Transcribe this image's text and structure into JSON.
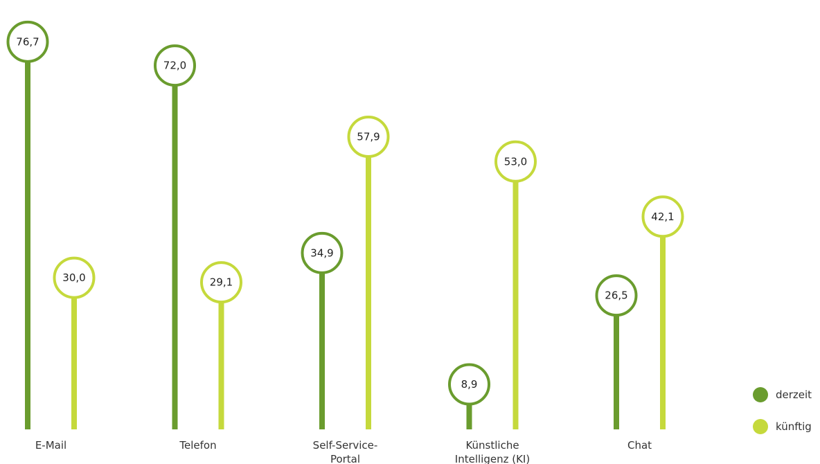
{
  "chart_data": {
    "type": "lollipop",
    "categories": [
      [
        "E-Mail"
      ],
      [
        "Telefon"
      ],
      [
        "Self-Service-",
        "Portal"
      ],
      [
        "Künstliche",
        "Intelligenz (KI)"
      ],
      [
        "Chat"
      ]
    ],
    "series": [
      {
        "name": "derzeit",
        "color": "#6a9c2e",
        "values": [
          76.7,
          72.0,
          34.9,
          8.9,
          26.5
        ],
        "labels": [
          "76,7",
          "72,0",
          "34,9",
          "8,9",
          "26,5"
        ]
      },
      {
        "name": "künftig",
        "color": "#c5d93c",
        "values": [
          30.0,
          29.1,
          57.9,
          53.0,
          42.1
        ],
        "labels": [
          "30,0",
          "29,1",
          "57,9",
          "53,0",
          "42,1"
        ]
      }
    ],
    "legend_position": "bottom-right",
    "grid": false
  }
}
